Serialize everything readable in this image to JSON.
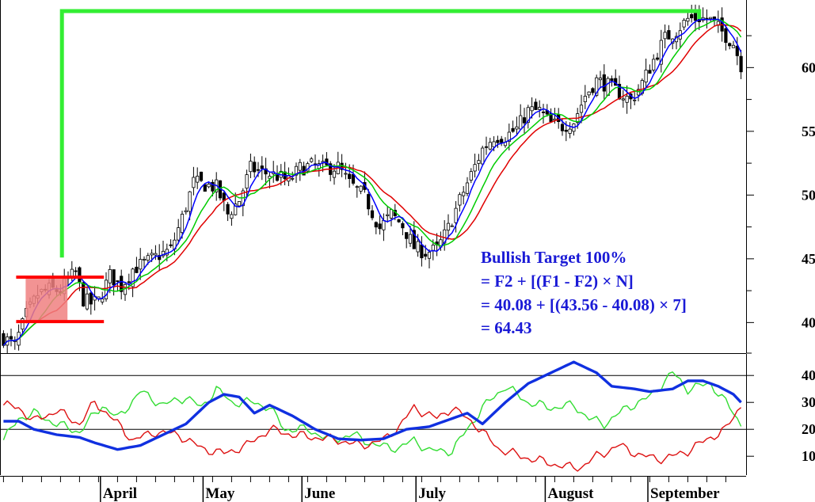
{
  "colors": {
    "candle": "#000000",
    "ma_blue": "#0000ff",
    "ma_green": "#00cc00",
    "ma_red": "#e00000",
    "target_line": "#33ee33",
    "range_line": "#ff0000",
    "range_fill": "#f08080",
    "adx": "#1030e0",
    "plus_di": "#33dd33",
    "minus_di": "#dd1111",
    "annotation": "#1a1ad6"
  },
  "annotation": {
    "line1": "Bullish Target 100%",
    "line2": "= F2 + [(F1 - F2) × N]",
    "line3": "= 40.08 + [(43.56 - 40.08) × 7]",
    "line4": "= 64.43"
  },
  "chart_data": [
    {
      "type": "candlestick",
      "title": "",
      "xlabel": "",
      "ylabel": "",
      "x_tick_labels": [
        "April",
        "May",
        "June",
        "July",
        "August",
        "September"
      ],
      "y_tick_labels": [
        "40",
        "45",
        "50",
        "55",
        "60"
      ],
      "y_ticks": [
        40,
        45,
        50,
        55,
        60
      ],
      "ylim": [
        37.6,
        65.3
      ],
      "bars_index_range": [
        0,
        194
      ],
      "month_start_bar": [
        26,
        53,
        79,
        109,
        143,
        170
      ],
      "price_path": [
        [
          0,
          38.8
        ],
        [
          3,
          38.2
        ],
        [
          6,
          40.6
        ],
        [
          9,
          42.2
        ],
        [
          12,
          42.6
        ],
        [
          15,
          42.5
        ],
        [
          17,
          43.4
        ],
        [
          19,
          43.9
        ],
        [
          21,
          41.8
        ],
        [
          23,
          41.5
        ],
        [
          25,
          41.7
        ],
        [
          28,
          43.7
        ],
        [
          31,
          42.8
        ],
        [
          34,
          44.2
        ],
        [
          38,
          44.8
        ],
        [
          41,
          45.3
        ],
        [
          44,
          45.7
        ],
        [
          47,
          48.2
        ],
        [
          50,
          51.0
        ],
        [
          53,
          50.8
        ],
        [
          56,
          50.6
        ],
        [
          59,
          48.5
        ],
        [
          62,
          49.6
        ],
        [
          65,
          52.1
        ],
        [
          68,
          51.8
        ],
        [
          72,
          51.5
        ],
        [
          75,
          51.1
        ],
        [
          78,
          52.1
        ],
        [
          81,
          52.3
        ],
        [
          84,
          52.1
        ],
        [
          88,
          52.2
        ],
        [
          91,
          50.9
        ],
        [
          95,
          49.9
        ],
        [
          99,
          47.4
        ],
        [
          102,
          48.5
        ],
        [
          105,
          47.6
        ],
        [
          108,
          45.9
        ],
        [
          111,
          45.5
        ],
        [
          114,
          45.7
        ],
        [
          117,
          47.4
        ],
        [
          120,
          49.6
        ],
        [
          123,
          51.6
        ],
        [
          126,
          53.6
        ],
        [
          129,
          54.6
        ],
        [
          132,
          54.6
        ],
        [
          135,
          55.2
        ],
        [
          138,
          56.6
        ],
        [
          141,
          56.6
        ],
        [
          144,
          55.6
        ],
        [
          147,
          55.4
        ],
        [
          150,
          55.8
        ],
        [
          153,
          57.8
        ],
        [
          156,
          59.0
        ],
        [
          159,
          58.6
        ],
        [
          162,
          58.0
        ],
        [
          165,
          57.4
        ],
        [
          168,
          58.8
        ],
        [
          171,
          60.6
        ],
        [
          174,
          62.3
        ],
        [
          177,
          62.9
        ],
        [
          180,
          63.8
        ],
        [
          183,
          63.9
        ],
        [
          186,
          63.7
        ],
        [
          189,
          62.8
        ],
        [
          192,
          61.9
        ],
        [
          194,
          60.2
        ]
      ],
      "moving_averages": [
        {
          "color": "blue",
          "period": 5
        },
        {
          "color": "green",
          "period": 10
        },
        {
          "color": "red",
          "period": 15
        }
      ],
      "annotations": {
        "target_level": 64.43,
        "F1": 43.56,
        "F2": 40.08,
        "N": 7,
        "flag_bar_start": 5,
        "flag_bar_end": 26,
        "pole_bar": 16
      }
    },
    {
      "type": "line",
      "title": "",
      "xlabel": "",
      "ylabel": "",
      "y_tick_labels": [
        "10",
        "20",
        "30",
        "40"
      ],
      "y_ticks": [
        10,
        20,
        30,
        40
      ],
      "ylim": [
        3,
        48
      ],
      "grid_lines": [
        20,
        40
      ],
      "series": [
        {
          "color": "blue",
          "points": [
            [
              0,
              23
            ],
            [
              4,
              23
            ],
            [
              8,
              20
            ],
            [
              14,
              18
            ],
            [
              20,
              17
            ],
            [
              24,
              15
            ],
            [
              30,
              12.5
            ],
            [
              36,
              14
            ],
            [
              42,
              18
            ],
            [
              48,
              22
            ],
            [
              54,
              30
            ],
            [
              58,
              33
            ],
            [
              62,
              32
            ],
            [
              66,
              26
            ],
            [
              70,
              29
            ],
            [
              76,
              25
            ],
            [
              82,
              20
            ],
            [
              88,
              16.5
            ],
            [
              94,
              16
            ],
            [
              100,
              16.5
            ],
            [
              106,
              20
            ],
            [
              112,
              21
            ],
            [
              118,
              24
            ],
            [
              122,
              26
            ],
            [
              126,
              22
            ],
            [
              132,
              30
            ],
            [
              138,
              37
            ],
            [
              144,
              41
            ],
            [
              150,
              45
            ],
            [
              156,
              41
            ],
            [
              160,
              36
            ],
            [
              166,
              35
            ],
            [
              170,
              34
            ],
            [
              176,
              35
            ],
            [
              180,
              38
            ],
            [
              184,
              38
            ],
            [
              188,
              36
            ],
            [
              192,
              33
            ],
            [
              194,
              30
            ]
          ]
        },
        {
          "color": "green",
          "points": [
            [
              0,
              16
            ],
            [
              4,
              24
            ],
            [
              8,
              26
            ],
            [
              14,
              22
            ],
            [
              20,
              19
            ],
            [
              26,
              29
            ],
            [
              30,
              24
            ],
            [
              36,
              34
            ],
            [
              42,
              29
            ],
            [
              48,
              32
            ],
            [
              52,
              28
            ],
            [
              56,
              35
            ],
            [
              60,
              30
            ],
            [
              66,
              30
            ],
            [
              70,
              28
            ],
            [
              74,
              20
            ],
            [
              80,
              20
            ],
            [
              86,
              16
            ],
            [
              92,
              18
            ],
            [
              98,
              14
            ],
            [
              104,
              13
            ],
            [
              108,
              16
            ],
            [
              112,
              12
            ],
            [
              118,
              12
            ],
            [
              122,
              20
            ],
            [
              126,
              28
            ],
            [
              132,
              36
            ],
            [
              138,
              30
            ],
            [
              144,
              28
            ],
            [
              150,
              29
            ],
            [
              154,
              24
            ],
            [
              158,
              22
            ],
            [
              164,
              28
            ],
            [
              170,
              32
            ],
            [
              176,
              41
            ],
            [
              180,
              35
            ],
            [
              186,
              37
            ],
            [
              190,
              30
            ],
            [
              194,
              22
            ]
          ]
        },
        {
          "color": "red",
          "points": [
            [
              0,
              29
            ],
            [
              4,
              28
            ],
            [
              8,
              23
            ],
            [
              14,
              27
            ],
            [
              20,
              22
            ],
            [
              24,
              30
            ],
            [
              28,
              25
            ],
            [
              34,
              16
            ],
            [
              40,
              19
            ],
            [
              46,
              18
            ],
            [
              52,
              13
            ],
            [
              58,
              11
            ],
            [
              64,
              14
            ],
            [
              70,
              20
            ],
            [
              76,
              18
            ],
            [
              82,
              17
            ],
            [
              88,
              16
            ],
            [
              94,
              14
            ],
            [
              100,
              16
            ],
            [
              104,
              21
            ],
            [
              108,
              28
            ],
            [
              114,
              24
            ],
            [
              118,
              28
            ],
            [
              124,
              22
            ],
            [
              130,
              13
            ],
            [
              136,
              10
            ],
            [
              142,
              8
            ],
            [
              148,
              6
            ],
            [
              152,
              6
            ],
            [
              156,
              10
            ],
            [
              162,
              14
            ],
            [
              168,
              10
            ],
            [
              174,
              9
            ],
            [
              180,
              12
            ],
            [
              186,
              17
            ],
            [
              190,
              20
            ],
            [
              194,
              29
            ]
          ]
        }
      ]
    }
  ]
}
